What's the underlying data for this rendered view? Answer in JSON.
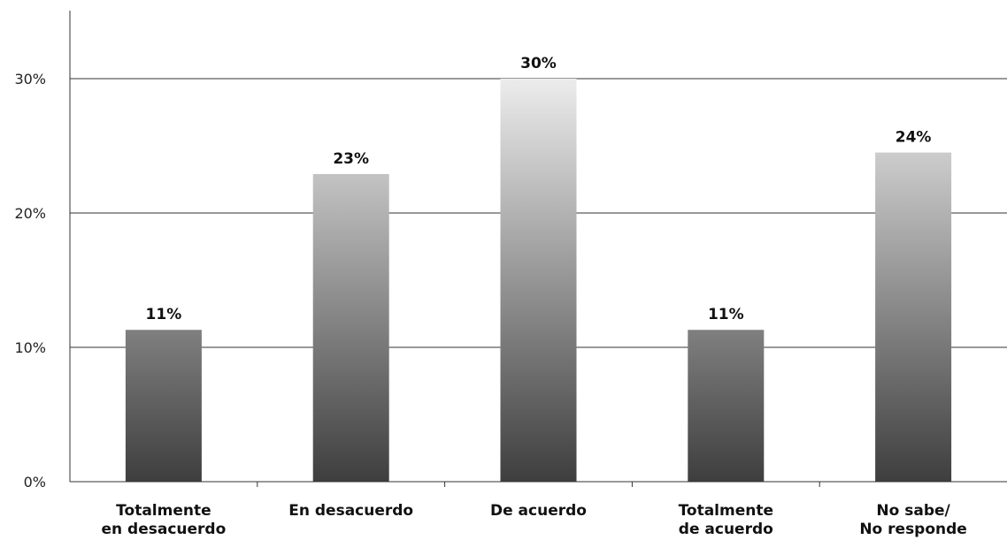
{
  "chart_data": {
    "type": "bar",
    "categories": [
      [
        "Totalmente",
        "en desacuerdo"
      ],
      [
        "En desacuerdo"
      ],
      [
        "De acuerdo"
      ],
      [
        "Totalmente",
        "de acuerdo"
      ],
      [
        "No sabe/",
        "No responde"
      ]
    ],
    "values": [
      11.3,
      22.9,
      30.0,
      11.3,
      24.5
    ],
    "data_labels": [
      "11%",
      "23%",
      "30%",
      "11%",
      "24%"
    ],
    "y_ticks": [
      0,
      10,
      20,
      30
    ],
    "y_tick_labels": [
      "0%",
      "10%",
      "20%",
      "30%"
    ],
    "ylim": [
      0,
      35
    ],
    "grid": true,
    "legend": "none",
    "bar_gradient": {
      "top": "#ececec",
      "bottom": "#3e3e3e"
    },
    "title": "",
    "xlabel": "",
    "ylabel": ""
  }
}
